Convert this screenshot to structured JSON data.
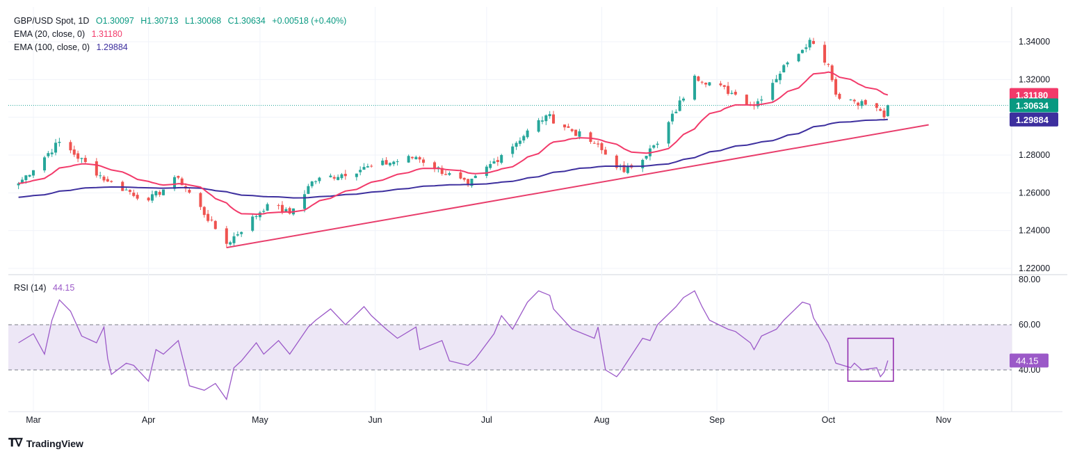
{
  "header": {
    "symbol": "GBP/USD Spot, 1D",
    "open": "O1.30097",
    "high": "H1.30713",
    "low": "L1.30068",
    "close": "C1.30634",
    "change": "+0.00518 (+0.40%)"
  },
  "indicators": {
    "ema20": {
      "label": "EMA (20, close, 0)",
      "value": "1.31180",
      "color": "#f23a6a"
    },
    "ema100": {
      "label": "EMA (100, close, 0)",
      "value": "1.29884",
      "color": "#3d2f9e"
    },
    "rsi": {
      "label": "RSI (14)",
      "value": "44.15",
      "color": "#9b59c8"
    }
  },
  "price_labels": {
    "ema20": "1.31180",
    "close": "1.30634",
    "ema100": "1.29884"
  },
  "footer": {
    "brand": "TradingView"
  },
  "colors": {
    "up": "#26a69a",
    "down": "#ef5350",
    "trendline": "#e83d6b",
    "rsi_band": "#ede7f6",
    "highlight_box": "#8e24aa"
  },
  "chart_data": [
    {
      "type": "candlestick",
      "title": "GBP/USD Spot, 1D",
      "x_ticks": [
        "Mar",
        "Apr",
        "May",
        "Jun",
        "Jul",
        "Aug",
        "Sep",
        "Oct",
        "Nov"
      ],
      "y_ticks": [
        "1.34000",
        "1.32000",
        "1.30000",
        "1.28000",
        "1.26000",
        "1.24000",
        "1.22000"
      ],
      "ylim": [
        1.218,
        1.344
      ],
      "approx_close_path": [
        [
          "Feb 26",
          1.265
        ],
        [
          "Mar 8",
          1.287
        ],
        [
          "Mar 21",
          1.266
        ],
        [
          "Apr 1",
          1.256
        ],
        [
          "Apr 9",
          1.268
        ],
        [
          "Apr 22",
          1.233
        ],
        [
          "May 3",
          1.254
        ],
        [
          "May 9",
          1.249
        ],
        [
          "May 15",
          1.266
        ],
        [
          "May 31",
          1.274
        ],
        [
          "Jun 12",
          1.279
        ],
        [
          "Jun 26",
          1.264
        ],
        [
          "Jul 5",
          1.28
        ],
        [
          "Jul 17",
          1.301
        ],
        [
          "Jul 30",
          1.286
        ],
        [
          "Aug 7",
          1.271
        ],
        [
          "Aug 16",
          1.286
        ],
        [
          "Aug 26",
          1.322
        ],
        [
          "Sep 6",
          1.312
        ],
        [
          "Sep 11",
          1.306
        ],
        [
          "Sep 20",
          1.329
        ],
        [
          "Sep 26",
          1.341
        ],
        [
          "Oct 1",
          1.328
        ],
        [
          "Oct 3",
          1.312
        ],
        [
          "Oct 14",
          1.305
        ],
        [
          "Oct 16",
          1.3
        ],
        [
          "Oct 17",
          1.30634
        ]
      ],
      "ema20_last": 1.3118,
      "ema100_last": 1.29884,
      "trendline": {
        "from": [
          "Apr 22",
          1.231
        ],
        "to": [
          "Oct 28",
          1.296
        ]
      }
    },
    {
      "type": "line",
      "title": "RSI (14)",
      "y_ticks": [
        "80.00",
        "60.00",
        "40.00"
      ],
      "ylim": [
        22,
        80
      ],
      "band": [
        40,
        60
      ],
      "last_value": 44.15,
      "points": [
        [
          "Feb 26",
          52
        ],
        [
          "Mar 1",
          56
        ],
        [
          "Mar 4",
          47
        ],
        [
          "Mar 6",
          62
        ],
        [
          "Mar 8",
          71
        ],
        [
          "Mar 11",
          66
        ],
        [
          "Mar 14",
          55
        ],
        [
          "Mar 18",
          52
        ],
        [
          "Mar 20",
          59
        ],
        [
          "Mar 21",
          45
        ],
        [
          "Mar 22",
          38
        ],
        [
          "Mar 26",
          43
        ],
        [
          "Mar 28",
          42
        ],
        [
          "Apr 1",
          35
        ],
        [
          "Apr 3",
          49
        ],
        [
          "Apr 5",
          47
        ],
        [
          "Apr 9",
          53
        ],
        [
          "Apr 11",
          40
        ],
        [
          "Apr 12",
          33
        ],
        [
          "Apr 16",
          31
        ],
        [
          "Apr 19",
          34
        ],
        [
          "Apr 22",
          27
        ],
        [
          "Apr 24",
          41
        ],
        [
          "Apr 26",
          44
        ],
        [
          "Apr 30",
          52
        ],
        [
          "May 2",
          47
        ],
        [
          "May 6",
          53
        ],
        [
          "May 9",
          47
        ],
        [
          "May 14",
          59
        ],
        [
          "May 16",
          62
        ],
        [
          "May 20",
          67
        ],
        [
          "May 24",
          60
        ],
        [
          "May 29",
          68
        ],
        [
          "May 31",
          64
        ],
        [
          "Jun 4",
          58
        ],
        [
          "Jun 7",
          54
        ],
        [
          "Jun 12",
          59
        ],
        [
          "Jun 13",
          49
        ],
        [
          "Jun 19",
          53
        ],
        [
          "Jun 21",
          44
        ],
        [
          "Jun 26",
          42
        ],
        [
          "Jun 28",
          45
        ],
        [
          "Jul 3",
          56
        ],
        [
          "Jul 5",
          64
        ],
        [
          "Jul 8",
          58
        ],
        [
          "Jul 12",
          70
        ],
        [
          "Jul 15",
          75
        ],
        [
          "Jul 18",
          73
        ],
        [
          "Jul 19",
          67
        ],
        [
          "Jul 24",
          58
        ],
        [
          "Jul 30",
          54
        ],
        [
          "Jul 31",
          59
        ],
        [
          "Aug 2",
          40
        ],
        [
          "Aug 5",
          37
        ],
        [
          "Aug 6",
          39
        ],
        [
          "Aug 8",
          44
        ],
        [
          "Aug 12",
          54
        ],
        [
          "Aug 14",
          53
        ],
        [
          "Aug 16",
          60
        ],
        [
          "Aug 21",
          68
        ],
        [
          "Aug 23",
          72
        ],
        [
          "Aug 26",
          75
        ],
        [
          "Aug 28",
          68
        ],
        [
          "Aug 30",
          62
        ],
        [
          "Sep 4",
          58
        ],
        [
          "Sep 6",
          57
        ],
        [
          "Sep 10",
          52
        ],
        [
          "Sep 11",
          49
        ],
        [
          "Sep 13",
          55
        ],
        [
          "Sep 17",
          58
        ],
        [
          "Sep 19",
          62
        ],
        [
          "Sep 24",
          70
        ],
        [
          "Sep 26",
          69
        ],
        [
          "Sep 27",
          63
        ],
        [
          "Oct 1",
          52
        ],
        [
          "Oct 3",
          43
        ],
        [
          "Oct 7",
          41
        ],
        [
          "Oct 8",
          43
        ],
        [
          "Oct 10",
          40
        ],
        [
          "Oct 14",
          41
        ],
        [
          "Oct 15",
          37
        ],
        [
          "Oct 16",
          39
        ],
        [
          "Oct 17",
          44.15
        ]
      ]
    }
  ]
}
